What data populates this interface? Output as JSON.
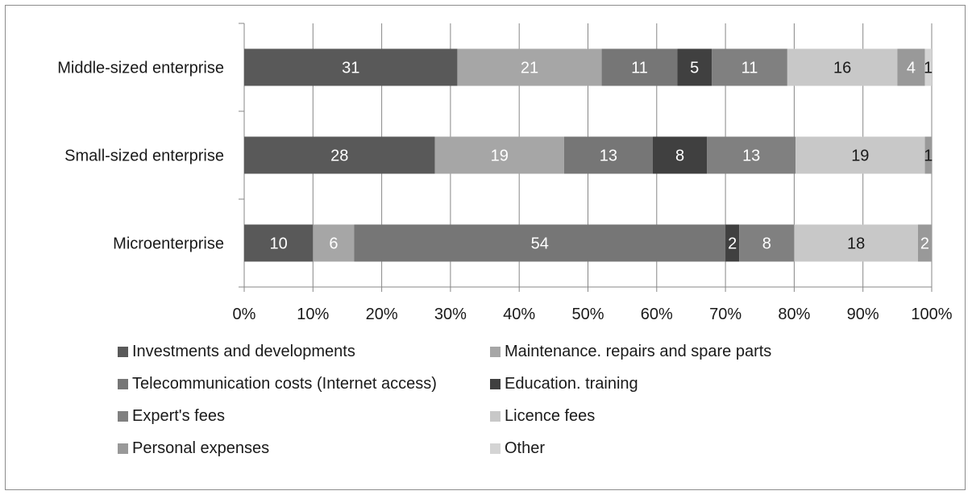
{
  "chart_data": {
    "type": "bar",
    "orientation": "horizontal",
    "stacked": "percent",
    "categories": [
      "Middle-sized enterprise",
      "Small-sized enterprise",
      "Microenterprise"
    ],
    "series": [
      {
        "name": "Investments and developments",
        "color": "#595959",
        "values": [
          31,
          28,
          10
        ]
      },
      {
        "name": "Maintenance. repairs and spare parts",
        "color": "#a6a6a6",
        "values": [
          21,
          19,
          6
        ]
      },
      {
        "name": "Telecommunication costs (Internet access)",
        "color": "#767676",
        "values": [
          11,
          13,
          54
        ]
      },
      {
        "name": "Education. training",
        "color": "#404040",
        "values": [
          5,
          8,
          2
        ]
      },
      {
        "name": "Expert's fees",
        "color": "#808080",
        "values": [
          11,
          13,
          8
        ]
      },
      {
        "name": "Licence fees",
        "color": "#c8c8c8",
        "values": [
          16,
          19,
          18
        ]
      },
      {
        "name": "Personal expenses",
        "color": "#999999",
        "values": [
          4,
          1,
          2
        ]
      },
      {
        "name": "Other",
        "color": "#d4d4d4",
        "values": [
          1,
          0,
          0
        ]
      }
    ],
    "data_labels": [
      [
        "31",
        "21",
        "11",
        "5",
        "11",
        "16",
        "4",
        "1"
      ],
      [
        "28",
        "19",
        "13",
        "8",
        "13",
        "19",
        "1",
        ""
      ],
      [
        "10",
        "6",
        "54",
        "2",
        "8",
        "18",
        "2",
        ""
      ]
    ],
    "xlim": [
      0,
      100
    ],
    "x_ticks": [
      "0%",
      "10%",
      "20%",
      "30%",
      "40%",
      "50%",
      "60%",
      "70%",
      "80%",
      "90%",
      "100%"
    ],
    "grid": true,
    "legend_position": "bottom"
  }
}
